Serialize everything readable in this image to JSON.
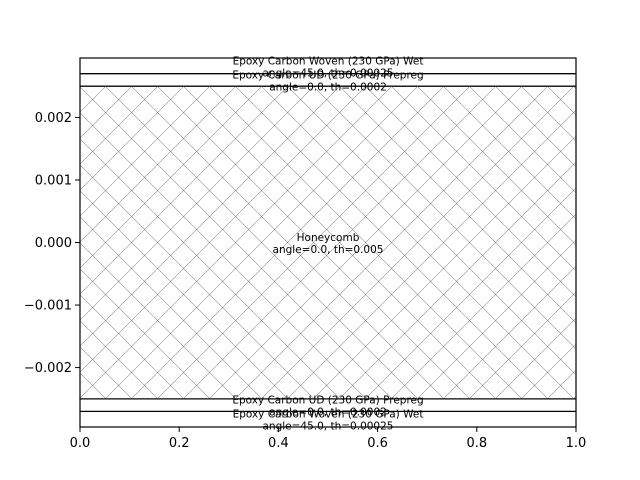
{
  "chart_data": {
    "type": "laminate-stack",
    "xlim": [
      0,
      1
    ],
    "ylim": [
      -0.00295,
      0.00295
    ],
    "x_ticks": [
      {
        "value": 0.0,
        "label": "0.0"
      },
      {
        "value": 0.2,
        "label": "0.2"
      },
      {
        "value": 0.4,
        "label": "0.4"
      },
      {
        "value": 0.6,
        "label": "0.6"
      },
      {
        "value": 0.8,
        "label": "0.8"
      },
      {
        "value": 1.0,
        "label": "1.0"
      }
    ],
    "y_ticks": [
      {
        "value": -0.002,
        "label": "−0.002"
      },
      {
        "value": -0.001,
        "label": "−0.001"
      },
      {
        "value": 0.0,
        "label": "0.000"
      },
      {
        "value": 0.001,
        "label": "0.001"
      },
      {
        "value": 0.002,
        "label": "0.002"
      }
    ],
    "plies": [
      {
        "material": "Epoxy Carbon Woven (230 GPa) Wet",
        "info": "angle=45.0, th=0.00025",
        "z_bottom": -0.00295,
        "z_top": -0.0027,
        "hatch": false
      },
      {
        "material": "Epoxy Carbon UD (230 GPa) Prepreg",
        "info": "angle=0.0, th=0.0002",
        "z_bottom": -0.0027,
        "z_top": -0.0025,
        "hatch": false
      },
      {
        "material": "Honeycomb",
        "info": "angle=0.0, th=0.005",
        "z_bottom": -0.0025,
        "z_top": 0.0025,
        "hatch": true
      },
      {
        "material": "Epoxy Carbon UD (230 GPa) Prepreg",
        "info": "angle=0.0, th=0.0002",
        "z_bottom": 0.0025,
        "z_top": 0.0027,
        "hatch": false
      },
      {
        "material": "Epoxy Carbon Woven (230 GPa) Wet",
        "info": "angle=45.0, th=0.00025",
        "z_bottom": 0.0027,
        "z_top": 0.00295,
        "hatch": false
      }
    ],
    "grid": false
  }
}
